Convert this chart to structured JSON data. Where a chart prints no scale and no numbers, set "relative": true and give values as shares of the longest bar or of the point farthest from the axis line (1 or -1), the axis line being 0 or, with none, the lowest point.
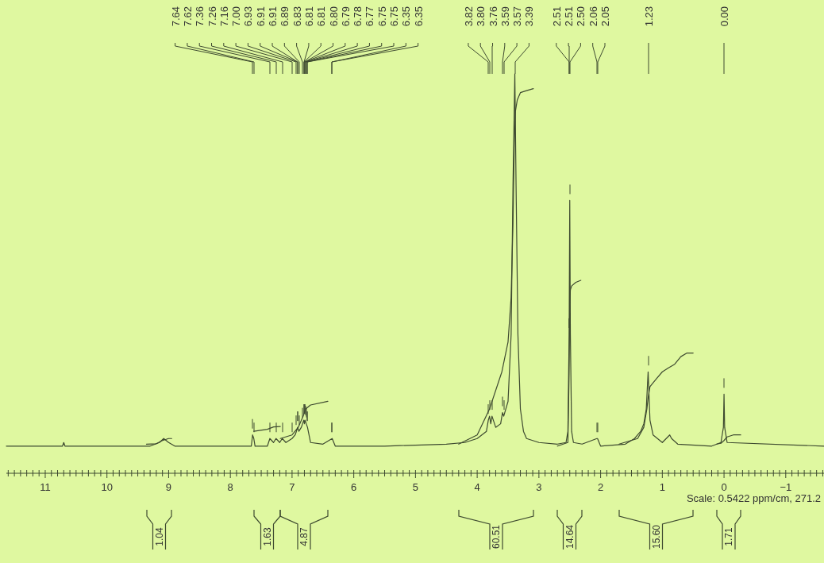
{
  "chart_data": {
    "type": "line",
    "relative": true,
    "xlim": [
      11.63,
      -1.62
    ],
    "xticks": [
      11,
      10,
      9,
      8,
      7,
      6,
      5,
      4,
      3,
      2,
      1,
      0,
      {
        "value": -1,
        "label": "−1"
      },
      {
        "value": 11.6,
        "label": null
      },
      {
        "value": 11.5,
        "label": null
      },
      {
        "value": 11.4,
        "label": null
      },
      {
        "value": 11.3,
        "label": null
      },
      {
        "value": 11.2,
        "label": null
      },
      {
        "value": 11.1,
        "label": null
      },
      {
        "value": 10.9,
        "label": null
      },
      {
        "value": 10.8,
        "label": null
      },
      {
        "value": 10.7,
        "label": null
      },
      {
        "value": 10.6,
        "label": null
      },
      {
        "value": 10.5,
        "label": null
      },
      {
        "value": 10.4,
        "label": null
      },
      {
        "value": 10.3,
        "label": null
      },
      {
        "value": 10.2,
        "label": null
      },
      {
        "value": 10.1,
        "label": null
      },
      {
        "value": 9.9,
        "label": null
      },
      {
        "value": 9.8,
        "label": null
      },
      {
        "value": 9.7,
        "label": null
      },
      {
        "value": 9.6,
        "label": null
      },
      {
        "value": 9.5,
        "label": null
      },
      {
        "value": 9.4,
        "label": null
      },
      {
        "value": 9.3,
        "label": null
      },
      {
        "value": 9.2,
        "label": null
      },
      {
        "value": 9.1,
        "label": null
      },
      {
        "value": 8.9,
        "label": null
      },
      {
        "value": 8.8,
        "label": null
      },
      {
        "value": 8.7,
        "label": null
      },
      {
        "value": 8.6,
        "label": null
      },
      {
        "value": 8.5,
        "label": null
      },
      {
        "value": 8.4,
        "label": null
      },
      {
        "value": 8.3,
        "label": null
      },
      {
        "value": 8.2,
        "label": null
      },
      {
        "value": 8.1,
        "label": null
      },
      {
        "value": 7.9,
        "label": null
      },
      {
        "value": 7.8,
        "label": null
      },
      {
        "value": 7.7,
        "label": null
      },
      {
        "value": 7.6,
        "label": null
      },
      {
        "value": 7.5,
        "label": null
      },
      {
        "value": 7.4,
        "label": null
      },
      {
        "value": 7.3,
        "label": null
      },
      {
        "value": 7.2,
        "label": null
      },
      {
        "value": 7.1,
        "label": null
      },
      {
        "value": 6.9,
        "label": null
      },
      {
        "value": 6.8,
        "label": null
      },
      {
        "value": 6.7,
        "label": null
      },
      {
        "value": 6.6,
        "label": null
      },
      {
        "value": 6.5,
        "label": null
      },
      {
        "value": 6.4,
        "label": null
      },
      {
        "value": 6.3,
        "label": null
      },
      {
        "value": 6.2,
        "label": null
      },
      {
        "value": 6.1,
        "label": null
      },
      {
        "value": 5.9,
        "label": null
      },
      {
        "value": 5.8,
        "label": null
      },
      {
        "value": 5.7,
        "label": null
      },
      {
        "value": 5.6,
        "label": null
      },
      {
        "value": 5.5,
        "label": null
      },
      {
        "value": 5.4,
        "label": null
      },
      {
        "value": 5.3,
        "label": null
      },
      {
        "value": 5.2,
        "label": null
      },
      {
        "value": 5.1,
        "label": null
      },
      {
        "value": 4.9,
        "label": null
      },
      {
        "value": 4.8,
        "label": null
      },
      {
        "value": 4.7,
        "label": null
      },
      {
        "value": 4.6,
        "label": null
      },
      {
        "value": 4.5,
        "label": null
      },
      {
        "value": 4.4,
        "label": null
      },
      {
        "value": 4.3,
        "label": null
      },
      {
        "value": 4.2,
        "label": null
      },
      {
        "value": 4.1,
        "label": null
      },
      {
        "value": 3.9,
        "label": null
      },
      {
        "value": 3.8,
        "label": null
      },
      {
        "value": 3.7,
        "label": null
      },
      {
        "value": 3.6,
        "label": null
      },
      {
        "value": 3.5,
        "label": null
      },
      {
        "value": 3.4,
        "label": null
      },
      {
        "value": 3.3,
        "label": null
      },
      {
        "value": 3.2,
        "label": null
      },
      {
        "value": 3.1,
        "label": null
      },
      {
        "value": 2.9,
        "label": null
      },
      {
        "value": 2.8,
        "label": null
      },
      {
        "value": 2.7,
        "label": null
      },
      {
        "value": 2.6,
        "label": null
      },
      {
        "value": 2.5,
        "label": null
      },
      {
        "value": 2.4,
        "label": null
      },
      {
        "value": 2.3,
        "label": null
      },
      {
        "value": 2.2,
        "label": null
      },
      {
        "value": 2.1,
        "label": null
      },
      {
        "value": 1.9,
        "label": null
      },
      {
        "value": 1.8,
        "label": null
      },
      {
        "value": 1.7,
        "label": null
      },
      {
        "value": 1.6,
        "label": null
      },
      {
        "value": 1.5,
        "label": null
      },
      {
        "value": 1.4,
        "label": null
      },
      {
        "value": 1.3,
        "label": null
      },
      {
        "value": 1.2,
        "label": null
      },
      {
        "value": 1.1,
        "label": null
      },
      {
        "value": 0.9,
        "label": null
      },
      {
        "value": 0.8,
        "label": null
      },
      {
        "value": 0.7,
        "label": null
      },
      {
        "value": 0.6,
        "label": null
      },
      {
        "value": 0.5,
        "label": null
      },
      {
        "value": 0.4,
        "label": null
      },
      {
        "value": 0.3,
        "label": null
      },
      {
        "value": 0.2,
        "label": null
      },
      {
        "value": 0.1,
        "label": null
      },
      {
        "value": -0.1,
        "label": null
      },
      {
        "value": -0.2,
        "label": null
      },
      {
        "value": -0.3,
        "label": null
      },
      {
        "value": -0.4,
        "label": null
      },
      {
        "value": -0.5,
        "label": null
      },
      {
        "value": -0.6,
        "label": null
      },
      {
        "value": -0.7,
        "label": null
      },
      {
        "value": -0.8,
        "label": null
      },
      {
        "value": -0.9,
        "label": null
      },
      {
        "value": -1.1,
        "label": null
      },
      {
        "value": -1.2,
        "label": null
      },
      {
        "value": -1.3,
        "label": null
      },
      {
        "value": -1.4,
        "label": null
      },
      {
        "value": -1.5,
        "label": null
      },
      {
        "value": -1.6,
        "label": null
      }
    ],
    "series": [
      {
        "color": "#3e4a30",
        "x": [
          11.63,
          10.72,
          10.7,
          10.68,
          9.3,
          9.15,
          9.08,
          9.0,
          8.9,
          7.66,
          7.64,
          7.62,
          7.6,
          7.4,
          7.36,
          7.3,
          7.26,
          7.2,
          7.16,
          7.1,
          7.0,
          6.95,
          6.93,
          6.91,
          6.89,
          6.85,
          6.83,
          6.81,
          6.8,
          6.79,
          6.78,
          6.77,
          6.75,
          6.7,
          6.5,
          6.35,
          6.3,
          5.5,
          4.5,
          4.2,
          4.0,
          3.85,
          3.82,
          3.8,
          3.78,
          3.76,
          3.7,
          3.62,
          3.59,
          3.57,
          3.5,
          3.45,
          3.42,
          3.39,
          3.37,
          3.34,
          3.3,
          3.25,
          3.2,
          3.0,
          2.7,
          2.56,
          2.53,
          2.51,
          2.5,
          2.49,
          2.47,
          2.44,
          2.3,
          2.06,
          2.05,
          2.0,
          1.6,
          1.45,
          1.4,
          1.35,
          1.3,
          1.26,
          1.23,
          1.2,
          1.15,
          1.0,
          0.88,
          0.85,
          0.75,
          0.2,
          0.05,
          0.01,
          0.0,
          -0.01,
          -0.05,
          -1.62
        ],
        "values": [
          0.068,
          0.068,
          0.077,
          0.068,
          0.068,
          0.077,
          0.087,
          0.077,
          0.068,
          0.068,
          0.096,
          0.087,
          0.068,
          0.068,
          0.087,
          0.077,
          0.087,
          0.077,
          0.087,
          0.077,
          0.087,
          0.096,
          0.105,
          0.115,
          0.105,
          0.115,
          0.124,
          0.133,
          0.124,
          0.133,
          0.129,
          0.124,
          0.115,
          0.077,
          0.073,
          0.087,
          0.068,
          0.068,
          0.073,
          0.077,
          0.087,
          0.105,
          0.133,
          0.143,
          0.124,
          0.143,
          0.115,
          0.124,
          0.152,
          0.143,
          0.18,
          0.348,
          0.72,
          1,
          0.72,
          0.348,
          0.161,
          0.105,
          0.087,
          0.077,
          0.073,
          0.077,
          0.105,
          0.348,
          0.683,
          0.348,
          0.105,
          0.077,
          0.073,
          0.087,
          0.087,
          0.068,
          0.073,
          0.087,
          0.096,
          0.105,
          0.124,
          0.161,
          0.254,
          0.133,
          0.096,
          0.077,
          0.096,
          0.087,
          0.073,
          0.068,
          0.077,
          0.115,
          0.198,
          0.115,
          0.077,
          0.068
        ]
      },
      {
        "color": "#3e4a30",
        "x": [
          9.36,
          9.2,
          9.1,
          9.0,
          8.95
        ],
        "values": [
          0.073,
          0.074,
          0.082,
          0.087,
          0.087
        ]
      },
      {
        "color": "#3e4a30",
        "x": [
          7.62,
          7.4,
          7.3,
          7.19
        ],
        "values": [
          0.105,
          0.11,
          0.116,
          0.117
        ]
      },
      {
        "color": "#3e4a30",
        "x": [
          7.19,
          7.0,
          6.9,
          6.82,
          6.78,
          6.7,
          6.42
        ],
        "values": [
          0.087,
          0.096,
          0.115,
          0.143,
          0.161,
          0.171,
          0.18
        ]
      },
      {
        "color": "#3e4a30",
        "x": [
          4.3,
          4.0,
          3.8,
          3.6,
          3.5,
          3.45,
          3.42,
          3.4,
          3.38,
          3.35,
          3.3,
          3.2,
          3.09
        ],
        "values": [
          0.073,
          0.096,
          0.161,
          0.254,
          0.329,
          0.441,
          0.627,
          0.814,
          0.907,
          0.935,
          0.953,
          0.958,
          0.963
        ]
      },
      {
        "color": "#3e4a30",
        "x": [
          2.7,
          2.53,
          2.51,
          2.5,
          2.49,
          2.47,
          2.4,
          2.32
        ],
        "values": [
          0.068,
          0.077,
          0.254,
          0.422,
          0.459,
          0.469,
          0.478,
          0.483
        ]
      },
      {
        "color": "#3e4a30",
        "x": [
          1.7,
          1.4,
          1.3,
          1.25,
          1.23,
          1.2,
          1.1,
          1.0,
          0.9,
          0.8,
          0.7,
          0.6,
          0.5
        ],
        "values": [
          0.073,
          0.087,
          0.115,
          0.161,
          0.189,
          0.217,
          0.236,
          0.254,
          0.264,
          0.273,
          0.292,
          0.301,
          0.301
        ]
      },
      {
        "color": "#3e4a30",
        "x": [
          0.12,
          0.05,
          0.0,
          -0.05,
          -0.15,
          -0.27
        ],
        "values": [
          0.073,
          0.075,
          0.082,
          0.091,
          0.096,
          0.096
        ]
      }
    ],
    "annotations": [
      "7.64",
      "7.62",
      "7.36",
      "7.26",
      "7.16",
      "7.00",
      "6.93",
      "6.91",
      "6.91",
      "6.89",
      "6.83",
      "6.81",
      "6.81",
      "6.80",
      "6.79",
      "6.78",
      "6.77",
      "6.75",
      "6.75",
      "6.35",
      "6.35",
      "3.82",
      "3.80",
      "3.76",
      "3.59",
      "3.57",
      "3.39",
      "2.51",
      "2.51",
      "2.50",
      "2.06",
      "2.05",
      "1.23",
      "0.00",
      "1.04",
      "1.63",
      "4.87",
      "60.51",
      "14.64",
      "15.60",
      "1.71",
      "Scale: 0.5422 ppm/cm, 271.2"
    ]
  }
}
